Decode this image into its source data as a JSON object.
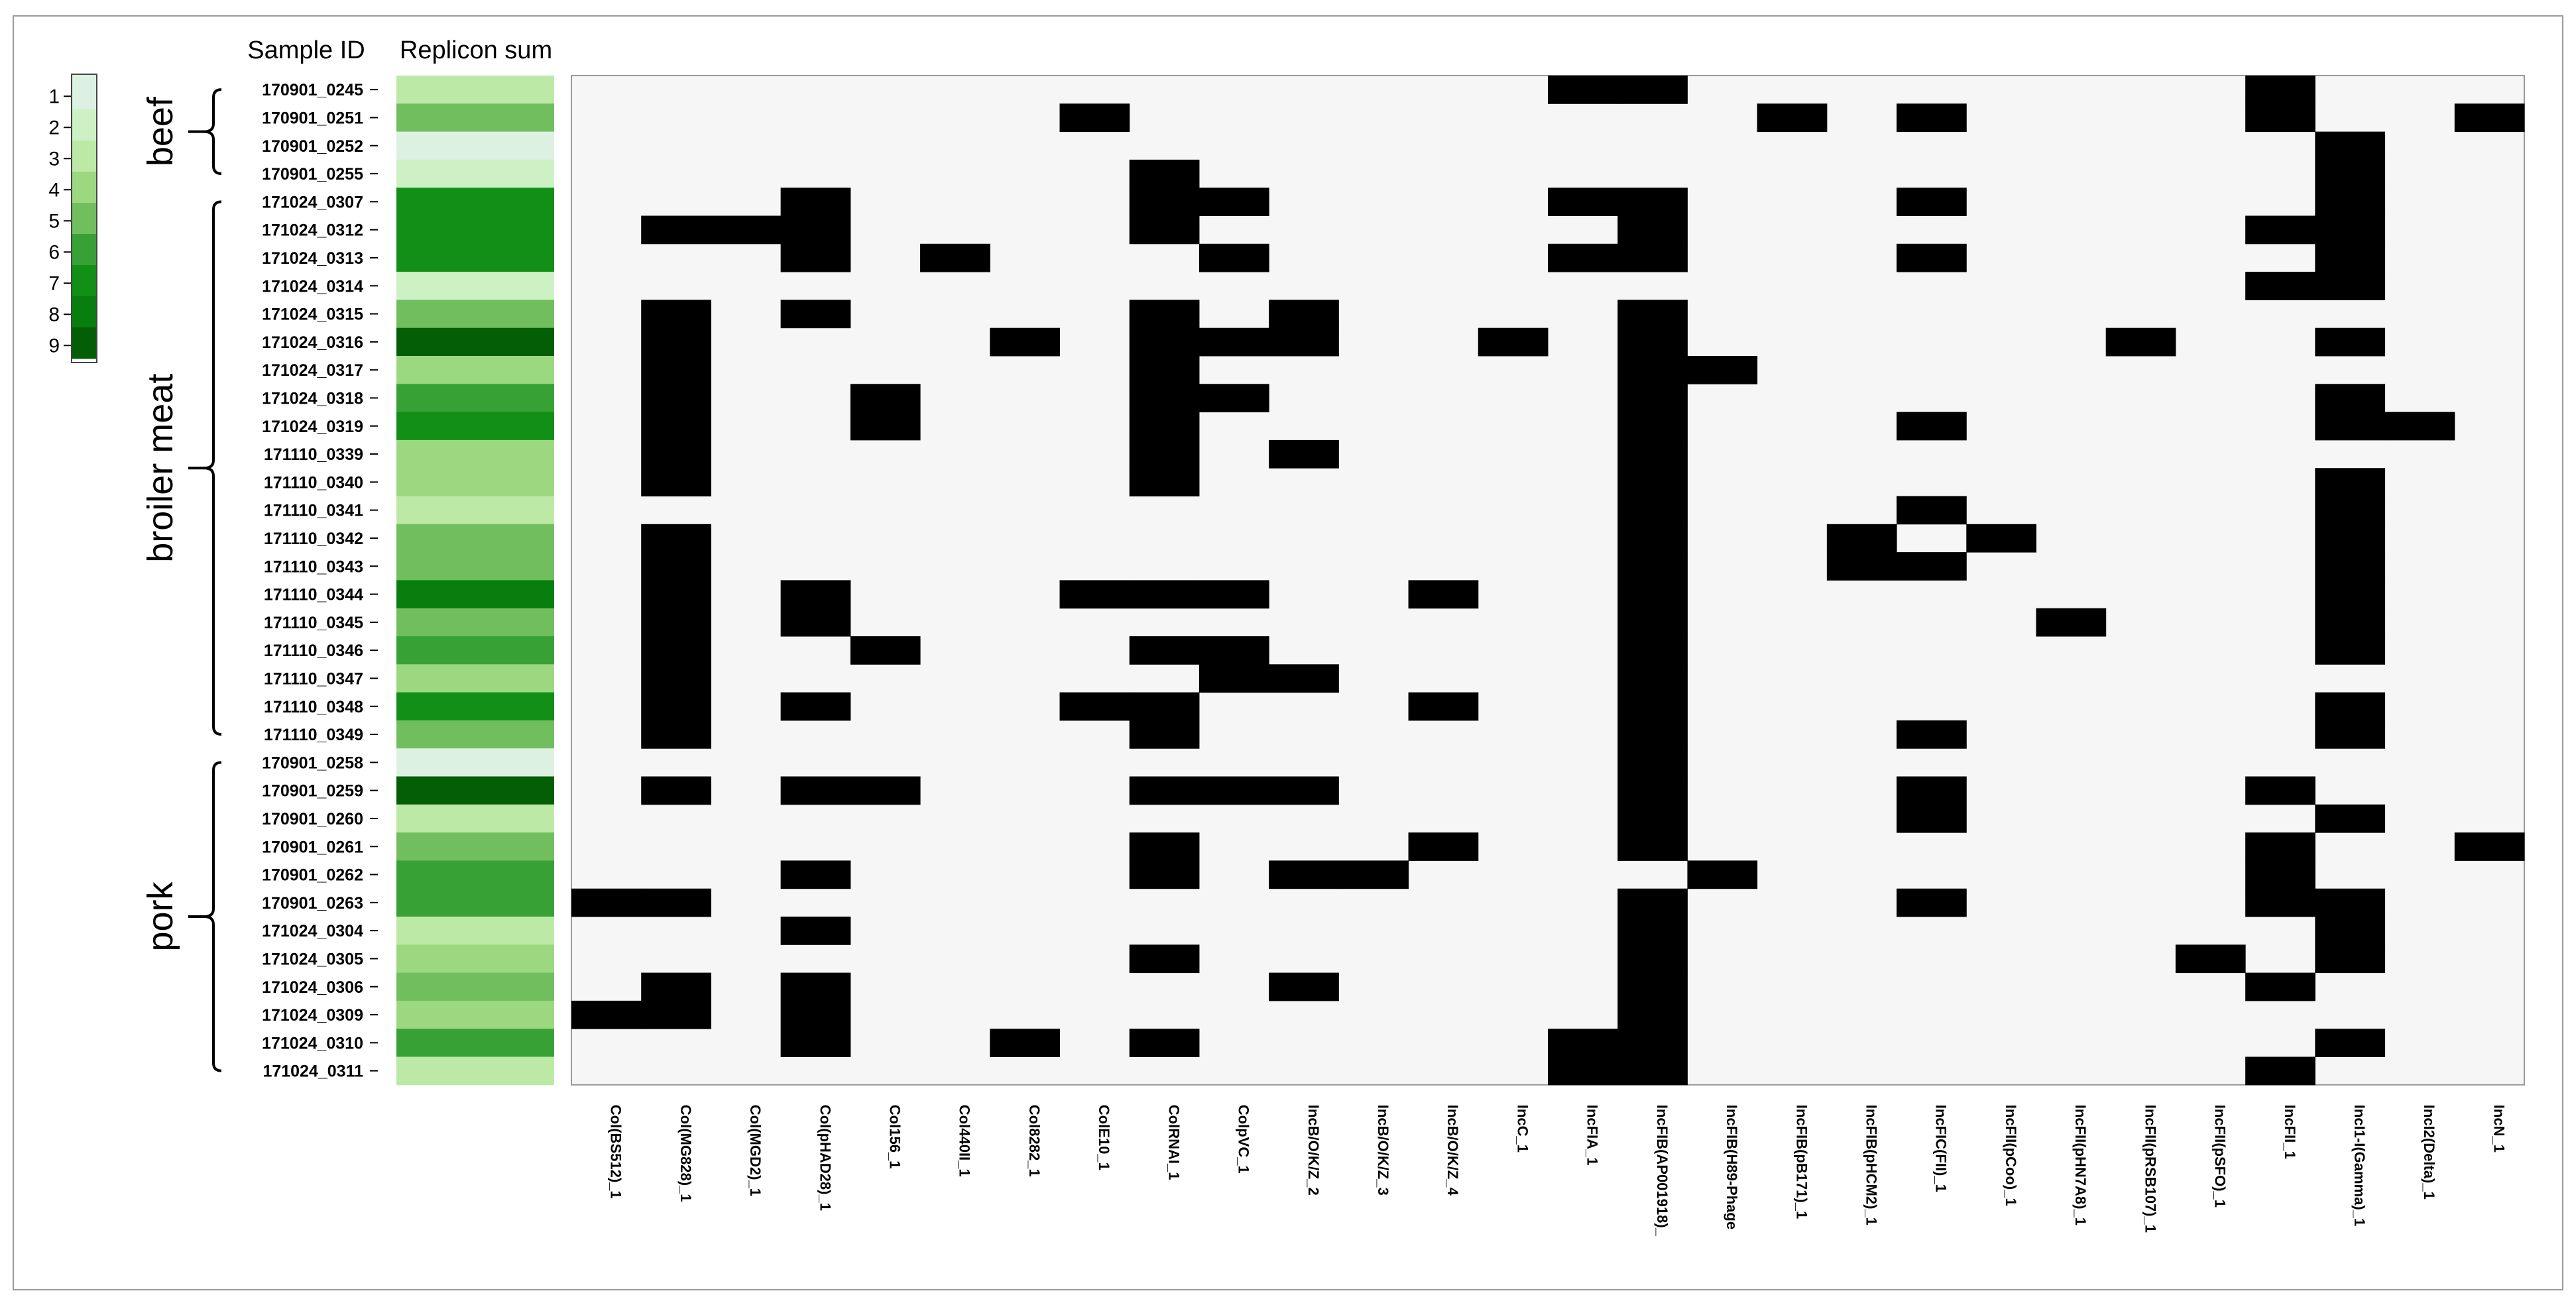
{
  "chart_data": {
    "type": "heatmap",
    "header_sample_id": "Sample ID",
    "header_replicon_sum": "Replicon sum",
    "legend": {
      "levels": [
        1,
        2,
        3,
        4,
        5,
        6,
        7,
        8,
        9
      ],
      "colors": [
        "#dcf1e2",
        "#cdf1c4",
        "#bce9a5",
        "#9bd87f",
        "#71be5e",
        "#38a136",
        "#118f17",
        "#077e0d",
        "#035e05"
      ]
    },
    "colors": {
      "present": "#000000",
      "absent": "#f6f6f6",
      "border": "#999999"
    },
    "groups": [
      {
        "name": "beef",
        "first": 0,
        "last": 3
      },
      {
        "name": "broiler meat",
        "first": 4,
        "last": 23
      },
      {
        "name": "pork",
        "first": 24,
        "last": 35
      }
    ],
    "columns": [
      "Col(BS512)_1",
      "Col(MG828)_1",
      "Col(MGD2)_1",
      "Col(pHAD28)_1",
      "Col156_1",
      "Col440II_1",
      "Col8282_1",
      "ColE10_1",
      "ColRNAI_1",
      "ColpVC_1",
      "IncB/O/K/Z_2",
      "IncB/O/K/Z_3",
      "IncB/O/K/Z_4",
      "IncC_1",
      "IncFIA_1",
      "IncFIB(AP001918)_",
      "IncFIB(H89-Phage",
      "IncFIB(pB171)_1",
      "IncFIB(pHCM2)_1",
      "IncFIC(FII)_1",
      "IncFII(pCoo)_1",
      "IncFII(pHN7A8)_1",
      "IncFII(pRSB107)_1",
      "IncFII(pSFO)_1",
      "IncFII_1",
      "IncI1-I(Gamma)_1",
      "IncI2(Delta)_1",
      "IncN_1"
    ],
    "rows": [
      {
        "id": "170901_0245",
        "sum": 3,
        "present": [
          14,
          15,
          24
        ]
      },
      {
        "id": "170901_0251",
        "sum": 5,
        "present": [
          7,
          17,
          19,
          24,
          27
        ]
      },
      {
        "id": "170901_0252",
        "sum": 1,
        "present": [
          25
        ]
      },
      {
        "id": "170901_0255",
        "sum": 2,
        "present": [
          8,
          25
        ]
      },
      {
        "id": "171024_0307",
        "sum": 7,
        "present": [
          3,
          8,
          9,
          14,
          15,
          19,
          25
        ]
      },
      {
        "id": "171024_0312",
        "sum": 7,
        "present": [
          1,
          2,
          3,
          8,
          15,
          24,
          25
        ]
      },
      {
        "id": "171024_0313",
        "sum": 7,
        "present": [
          3,
          5,
          9,
          14,
          15,
          19,
          25
        ]
      },
      {
        "id": "171024_0314",
        "sum": 2,
        "present": [
          24,
          25
        ]
      },
      {
        "id": "171024_0315",
        "sum": 5,
        "present": [
          1,
          3,
          8,
          10,
          15
        ]
      },
      {
        "id": "171024_0316",
        "sum": 9,
        "present": [
          1,
          6,
          8,
          9,
          10,
          13,
          15,
          22,
          25
        ]
      },
      {
        "id": "171024_0317",
        "sum": 4,
        "present": [
          1,
          8,
          15,
          16
        ]
      },
      {
        "id": "171024_0318",
        "sum": 6,
        "present": [
          1,
          4,
          8,
          9,
          15,
          25
        ]
      },
      {
        "id": "171024_0319",
        "sum": 7,
        "present": [
          1,
          4,
          8,
          15,
          19,
          25,
          26
        ]
      },
      {
        "id": "171110_0339",
        "sum": 4,
        "present": [
          1,
          8,
          10,
          15
        ]
      },
      {
        "id": "171110_0340",
        "sum": 4,
        "present": [
          1,
          8,
          15,
          25
        ]
      },
      {
        "id": "171110_0341",
        "sum": 3,
        "present": [
          15,
          19,
          25
        ]
      },
      {
        "id": "171110_0342",
        "sum": 5,
        "present": [
          1,
          15,
          18,
          20,
          25
        ]
      },
      {
        "id": "171110_0343",
        "sum": 5,
        "present": [
          1,
          15,
          18,
          25,
          19
        ]
      },
      {
        "id": "171110_0344",
        "sum": 8,
        "present": [
          1,
          7,
          8,
          12,
          15,
          25,
          3,
          9
        ]
      },
      {
        "id": "171110_0345",
        "sum": 5,
        "present": [
          1,
          3,
          15,
          21,
          25
        ]
      },
      {
        "id": "171110_0346",
        "sum": 6,
        "present": [
          1,
          8,
          15,
          25,
          4,
          9
        ]
      },
      {
        "id": "171110_0347",
        "sum": 4,
        "present": [
          1,
          9,
          10,
          15
        ]
      },
      {
        "id": "171110_0348",
        "sum": 7,
        "present": [
          1,
          7,
          8,
          12,
          15,
          25,
          3
        ]
      },
      {
        "id": "171110_0349",
        "sum": 5,
        "present": [
          1,
          8,
          15,
          19,
          25
        ]
      },
      {
        "id": "170901_0258",
        "sum": 1,
        "present": [
          15
        ]
      },
      {
        "id": "170901_0259",
        "sum": 9,
        "present": [
          1,
          3,
          4,
          8,
          9,
          10,
          15,
          19,
          24
        ]
      },
      {
        "id": "170901_0260",
        "sum": 3,
        "present": [
          15,
          19,
          25
        ]
      },
      {
        "id": "170901_0261",
        "sum": 5,
        "present": [
          8,
          12,
          24,
          27,
          15
        ]
      },
      {
        "id": "170901_0262",
        "sum": 6,
        "present": [
          3,
          8,
          10,
          11,
          16,
          24
        ]
      },
      {
        "id": "170901_0263",
        "sum": 6,
        "present": [
          0,
          1,
          15,
          19,
          24,
          25
        ]
      },
      {
        "id": "171024_0304",
        "sum": 3,
        "present": [
          3,
          15,
          25
        ]
      },
      {
        "id": "171024_0305",
        "sum": 4,
        "present": [
          8,
          15,
          23,
          25
        ]
      },
      {
        "id": "171024_0306",
        "sum": 5,
        "present": [
          1,
          3,
          10,
          15,
          24
        ]
      },
      {
        "id": "171024_0309",
        "sum": 4,
        "present": [
          0,
          1,
          3,
          15
        ]
      },
      {
        "id": "171024_0310",
        "sum": 6,
        "present": [
          6,
          8,
          15,
          25,
          14,
          3
        ]
      },
      {
        "id": "171024_0311",
        "sum": 3,
        "present": [
          14,
          15,
          24
        ]
      }
    ]
  }
}
